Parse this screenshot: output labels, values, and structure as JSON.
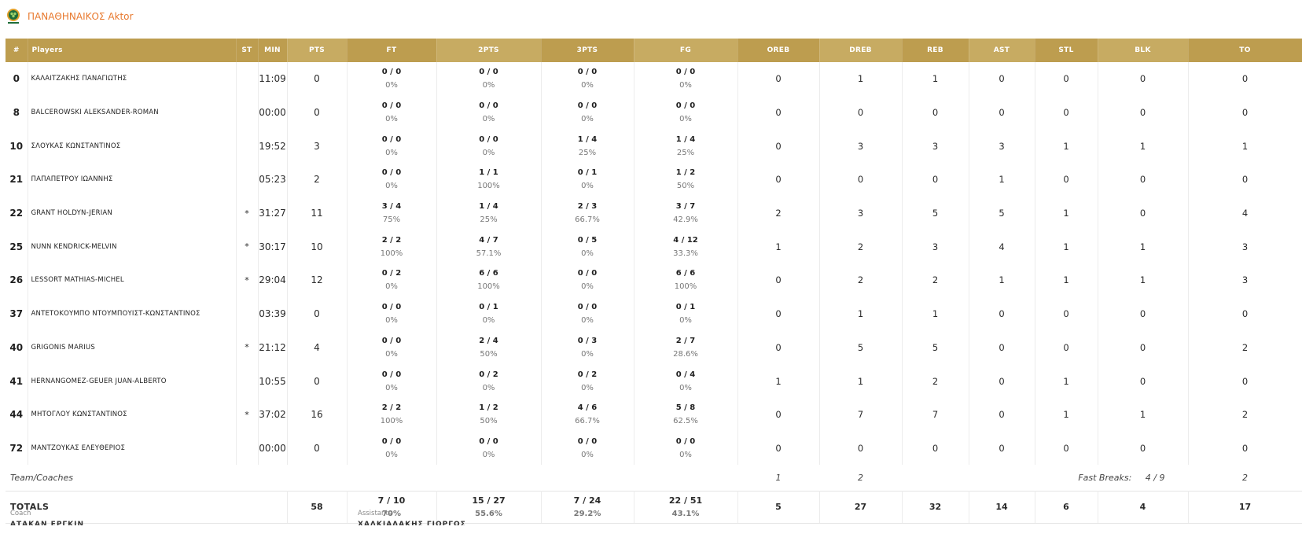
{
  "team": {
    "name": "ΠΑΝΑΘΗΝΑΙΚΟΣ Aktor",
    "logo_icon": "clover-icon",
    "accent_color": "#e8792e",
    "header_color": "#bd9d4f"
  },
  "headers": [
    "#",
    "Players",
    "ST",
    "MIN",
    "PTS",
    "FT",
    "2PTS",
    "3PTS",
    "FG",
    "OREB",
    "DREB",
    "REB",
    "AST",
    "STL",
    "BLK",
    "TO"
  ],
  "players": [
    {
      "num": "0",
      "name": "ΚΑΛΑΙΤΖΑΚΗΣ ΠΑΝΑΓΙΩΤΗΣ",
      "st": "",
      "min": "11:09",
      "pts": "0",
      "ft": [
        "0 / 0",
        "0%"
      ],
      "p2": [
        "0 / 0",
        "0%"
      ],
      "p3": [
        "0 / 0",
        "0%"
      ],
      "fg": [
        "0 / 0",
        "0%"
      ],
      "oreb": "0",
      "dreb": "1",
      "reb": "1",
      "ast": "0",
      "stl": "0",
      "blk": "0",
      "to": "0"
    },
    {
      "num": "8",
      "name": "BALCEROWSKI ALEKSANDER-ROMAN",
      "st": "",
      "min": "00:00",
      "pts": "0",
      "ft": [
        "0 / 0",
        "0%"
      ],
      "p2": [
        "0 / 0",
        "0%"
      ],
      "p3": [
        "0 / 0",
        "0%"
      ],
      "fg": [
        "0 / 0",
        "0%"
      ],
      "oreb": "0",
      "dreb": "0",
      "reb": "0",
      "ast": "0",
      "stl": "0",
      "blk": "0",
      "to": "0"
    },
    {
      "num": "10",
      "name": "ΣΛΟΥΚΑΣ ΚΩΝΣΤΑΝΤΙΝΟΣ",
      "st": "",
      "min": "19:52",
      "pts": "3",
      "ft": [
        "0 / 0",
        "0%"
      ],
      "p2": [
        "0 / 0",
        "0%"
      ],
      "p3": [
        "1 / 4",
        "25%"
      ],
      "fg": [
        "1 / 4",
        "25%"
      ],
      "oreb": "0",
      "dreb": "3",
      "reb": "3",
      "ast": "3",
      "stl": "1",
      "blk": "1",
      "to": "1"
    },
    {
      "num": "21",
      "name": "ΠΑΠΑΠΕΤΡΟΥ ΙΩΑΝΝΗΣ",
      "st": "",
      "min": "05:23",
      "pts": "2",
      "ft": [
        "0 / 0",
        "0%"
      ],
      "p2": [
        "1 / 1",
        "100%"
      ],
      "p3": [
        "0 / 1",
        "0%"
      ],
      "fg": [
        "1 / 2",
        "50%"
      ],
      "oreb": "0",
      "dreb": "0",
      "reb": "0",
      "ast": "1",
      "stl": "0",
      "blk": "0",
      "to": "0"
    },
    {
      "num": "22",
      "name": "GRANT HOLDYN-JERIAN",
      "st": "*",
      "min": "31:27",
      "pts": "11",
      "ft": [
        "3 / 4",
        "75%"
      ],
      "p2": [
        "1 / 4",
        "25%"
      ],
      "p3": [
        "2 / 3",
        "66.7%"
      ],
      "fg": [
        "3 / 7",
        "42.9%"
      ],
      "oreb": "2",
      "dreb": "3",
      "reb": "5",
      "ast": "5",
      "stl": "1",
      "blk": "0",
      "to": "4"
    },
    {
      "num": "25",
      "name": "NUNN KENDRICK-MELVIN",
      "st": "*",
      "min": "30:17",
      "pts": "10",
      "ft": [
        "2 / 2",
        "100%"
      ],
      "p2": [
        "4 / 7",
        "57.1%"
      ],
      "p3": [
        "0 / 5",
        "0%"
      ],
      "fg": [
        "4 / 12",
        "33.3%"
      ],
      "oreb": "1",
      "dreb": "2",
      "reb": "3",
      "ast": "4",
      "stl": "1",
      "blk": "1",
      "to": "3"
    },
    {
      "num": "26",
      "name": "LESSORT MATHIAS-MICHEL",
      "st": "*",
      "min": "29:04",
      "pts": "12",
      "ft": [
        "0 / 2",
        "0%"
      ],
      "p2": [
        "6 / 6",
        "100%"
      ],
      "p3": [
        "0 / 0",
        "0%"
      ],
      "fg": [
        "6 / 6",
        "100%"
      ],
      "oreb": "0",
      "dreb": "2",
      "reb": "2",
      "ast": "1",
      "stl": "1",
      "blk": "1",
      "to": "3"
    },
    {
      "num": "37",
      "name": "ΑΝΤΕΤΟΚΟΥΜΠΟ ΝΤΟΥΜΠΟΥΙΣΤ-ΚΩΝΣΤΑΝΤΙΝΟΣ",
      "st": "",
      "min": "03:39",
      "pts": "0",
      "ft": [
        "0 / 0",
        "0%"
      ],
      "p2": [
        "0 / 1",
        "0%"
      ],
      "p3": [
        "0 / 0",
        "0%"
      ],
      "fg": [
        "0 / 1",
        "0%"
      ],
      "oreb": "0",
      "dreb": "1",
      "reb": "1",
      "ast": "0",
      "stl": "0",
      "blk": "0",
      "to": "0"
    },
    {
      "num": "40",
      "name": "GRIGONIS MARIUS",
      "st": "*",
      "min": "21:12",
      "pts": "4",
      "ft": [
        "0 / 0",
        "0%"
      ],
      "p2": [
        "2 / 4",
        "50%"
      ],
      "p3": [
        "0 / 3",
        "0%"
      ],
      "fg": [
        "2 / 7",
        "28.6%"
      ],
      "oreb": "0",
      "dreb": "5",
      "reb": "5",
      "ast": "0",
      "stl": "0",
      "blk": "0",
      "to": "2"
    },
    {
      "num": "41",
      "name": "HERNANGOMEZ-GEUER JUAN-ALBERTO",
      "st": "",
      "min": "10:55",
      "pts": "0",
      "ft": [
        "0 / 0",
        "0%"
      ],
      "p2": [
        "0 / 2",
        "0%"
      ],
      "p3": [
        "0 / 2",
        "0%"
      ],
      "fg": [
        "0 / 4",
        "0%"
      ],
      "oreb": "1",
      "dreb": "1",
      "reb": "2",
      "ast": "0",
      "stl": "1",
      "blk": "0",
      "to": "0"
    },
    {
      "num": "44",
      "name": "ΜΗΤΟΓΛΟΥ ΚΩΝΣΤΑΝΤΙΝΟΣ",
      "st": "*",
      "min": "37:02",
      "pts": "16",
      "ft": [
        "2 / 2",
        "100%"
      ],
      "p2": [
        "1 / 2",
        "50%"
      ],
      "p3": [
        "4 / 6",
        "66.7%"
      ],
      "fg": [
        "5 / 8",
        "62.5%"
      ],
      "oreb": "0",
      "dreb": "7",
      "reb": "7",
      "ast": "0",
      "stl": "1",
      "blk": "1",
      "to": "2"
    },
    {
      "num": "72",
      "name": "ΜΑΝΤΖΟΥΚΑΣ ΕΛΕΥΘΕΡΙΟΣ",
      "st": "",
      "min": "00:00",
      "pts": "0",
      "ft": [
        "0 / 0",
        "0%"
      ],
      "p2": [
        "0 / 0",
        "0%"
      ],
      "p3": [
        "0 / 0",
        "0%"
      ],
      "fg": [
        "0 / 0",
        "0%"
      ],
      "oreb": "0",
      "dreb": "0",
      "reb": "0",
      "ast": "0",
      "stl": "0",
      "blk": "0",
      "to": "0"
    }
  ],
  "team_row": {
    "label": "Team/Coaches",
    "oreb": "1",
    "dreb": "2",
    "fast_breaks_label": "Fast Breaks:",
    "fast_breaks_value": "4 / 9",
    "to": "2"
  },
  "totals": {
    "label": "TOTALS",
    "pts": "58",
    "ft": [
      "7 / 10",
      "70%"
    ],
    "p2": [
      "15 / 27",
      "55.6%"
    ],
    "p3": [
      "7 / 24",
      "29.2%"
    ],
    "fg": [
      "22 / 51",
      "43.1%"
    ],
    "oreb": "5",
    "dreb": "27",
    "reb": "32",
    "ast": "14",
    "stl": "6",
    "blk": "4",
    "to": "17"
  },
  "staff": {
    "coach_label": "Coach",
    "coach_value": "ΑΤΑΚΑΝ ΕΡΓΚΙΝ",
    "assistants_label": "Assistants",
    "assistants_value": "ΧΑΛΚΙΑΔΑΚΗΣ ΓΙΩΡΓΟΣ"
  }
}
